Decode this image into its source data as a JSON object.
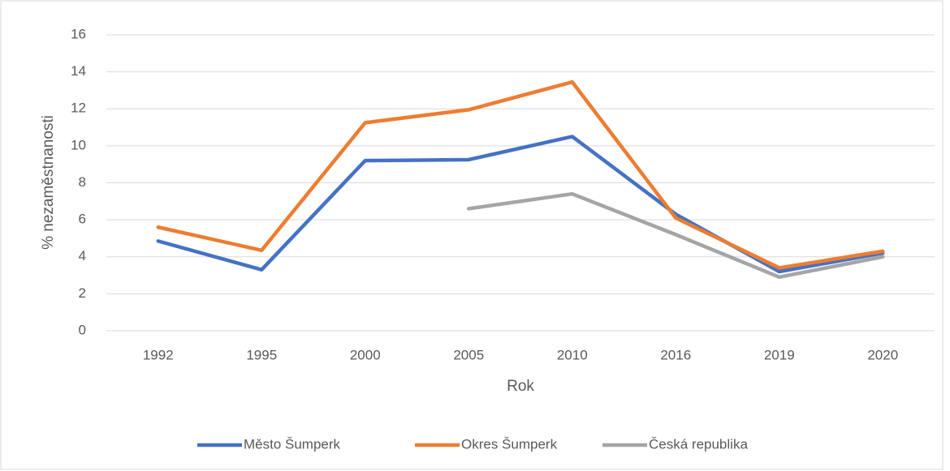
{
  "chart_data": {
    "type": "line",
    "xlabel": "Rok",
    "ylabel": "% nezaměstnanosti",
    "categories": [
      "1992",
      "1995",
      "2000",
      "2005",
      "2010",
      "2016",
      "2019",
      "2020"
    ],
    "series": [
      {
        "name": "Město Šumperk",
        "color": "#4472c4",
        "values": [
          4.85,
          3.3,
          9.2,
          9.25,
          10.5,
          6.3,
          3.2,
          4.2
        ]
      },
      {
        "name": "Okres Šumperk",
        "color": "#ed7d31",
        "values": [
          5.6,
          4.35,
          11.25,
          11.95,
          13.45,
          6.1,
          3.4,
          4.3
        ]
      },
      {
        "name": "Česká republika",
        "color": "#a5a5a5",
        "values": [
          null,
          null,
          null,
          6.6,
          7.4,
          5.2,
          2.9,
          4.0
        ]
      }
    ],
    "ylim": [
      0,
      16
    ],
    "yticks": [
      0,
      2,
      4,
      6,
      8,
      10,
      12,
      14,
      16
    ],
    "grid": true,
    "legend": "bottom"
  }
}
